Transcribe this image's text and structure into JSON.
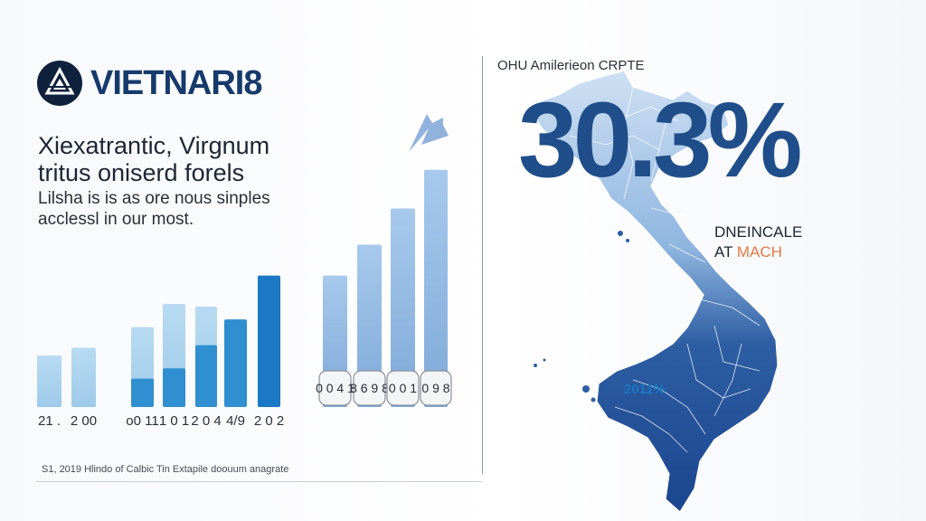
{
  "logo": {
    "text": "VIETNARI8",
    "icon": "triangle-emblem-icon"
  },
  "headline": "Xiexatrantic, Virgnum tritus oniserd forels",
  "subtext": "Lilsha is is as ore nous sinples acclessl in our most.",
  "footnote": "S1, 2019  Hlindo of Calbic Tin Extapile doouum anagrate",
  "map": {
    "title": "OHU Amilerieon CRPTE",
    "big_stat": "30.3%",
    "stat_label_line1": "DNEINCALE",
    "stat_label_prefix": "AT",
    "stat_label_accent": "MACH",
    "region_value": "2011%"
  },
  "colors": {
    "light": "#a9d0ec",
    "mid": "#2f8fd0",
    "dark": "#1b78c4",
    "right_group": "#8fb8e3",
    "navy": "#1f4e8a",
    "accent": "#e07a45"
  },
  "chart_data": {
    "type": "bar",
    "ylim": [
      0,
      100
    ],
    "groups": [
      {
        "label": "21 .",
        "bars": [
          {
            "value": 20,
            "tone": "light"
          }
        ]
      },
      {
        "label": "2 00",
        "bars": [
          {
            "value": 23,
            "tone": "light"
          }
        ]
      },
      {
        "label": "o0 11",
        "bars": [
          {
            "value": 31,
            "tone": "light"
          },
          {
            "value": 11,
            "tone": "mid"
          }
        ]
      },
      {
        "label": "1 0 1",
        "bars": [
          {
            "value": 40,
            "tone": "light"
          },
          {
            "value": 15,
            "tone": "mid"
          }
        ]
      },
      {
        "label": "2 0 4",
        "bars": [
          {
            "value": 39,
            "tone": "light"
          },
          {
            "value": 24,
            "tone": "mid"
          }
        ]
      },
      {
        "label": "4/9",
        "bars": [
          {
            "value": 34,
            "tone": "mid"
          }
        ]
      },
      {
        "label": "2 0 2",
        "bars": [
          {
            "value": 51,
            "tone": "dark"
          }
        ]
      },
      {
        "label": "0 0 4 1",
        "bars": [
          {
            "value": 51,
            "tone": "right_group"
          }
        ]
      },
      {
        "label": "8 6 9 8",
        "bars": [
          {
            "value": 63,
            "tone": "right_group"
          }
        ]
      },
      {
        "label": "0 0 1",
        "bars": [
          {
            "value": 77,
            "tone": "right_group"
          }
        ]
      },
      {
        "label": "0 9 8",
        "bars": [
          {
            "value": 92,
            "tone": "right_group"
          }
        ]
      }
    ]
  }
}
